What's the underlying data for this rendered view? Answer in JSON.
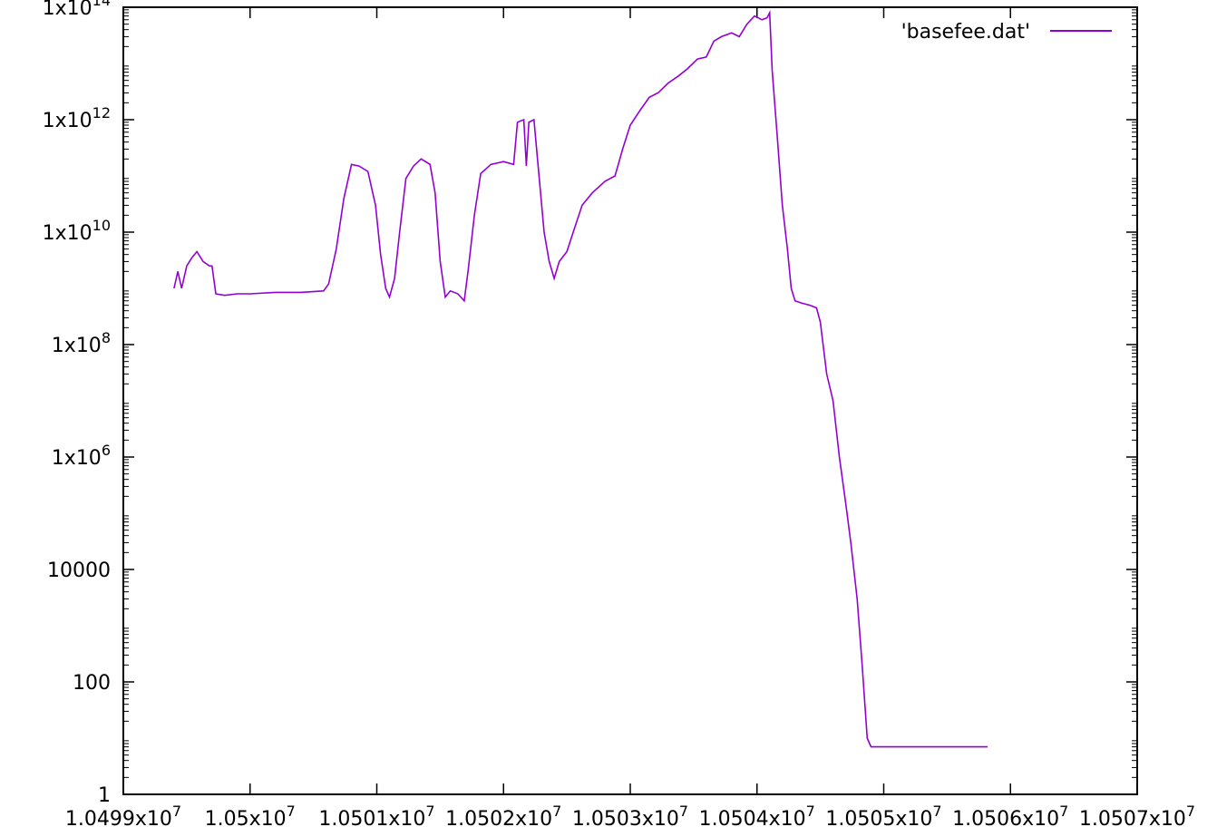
{
  "chart_data": {
    "type": "line",
    "title": "",
    "xlabel": "",
    "ylabel": "",
    "y_scale": "log",
    "xlim": [
      10499000,
      10507000
    ],
    "ylim": [
      1,
      100000000000000.0
    ],
    "grid": false,
    "legend_position": "top-right",
    "x_ticks": [
      {
        "value": 10499000,
        "label": "1.0499x10",
        "exp": "7"
      },
      {
        "value": 10500000,
        "label": "1.05x10",
        "exp": "7"
      },
      {
        "value": 10501000,
        "label": "1.0501x10",
        "exp": "7"
      },
      {
        "value": 10502000,
        "label": "1.0502x10",
        "exp": "7"
      },
      {
        "value": 10503000,
        "label": "1.0503x10",
        "exp": "7"
      },
      {
        "value": 10504000,
        "label": "1.0504x10",
        "exp": "7"
      },
      {
        "value": 10505000,
        "label": "1.0505x10",
        "exp": "7"
      },
      {
        "value": 10506000,
        "label": "1.0506x10",
        "exp": "7"
      },
      {
        "value": 10507000,
        "label": "1.0507x10",
        "exp": "7"
      }
    ],
    "y_ticks": [
      {
        "value": 1,
        "label": "1",
        "exp": ""
      },
      {
        "value": 100,
        "label": "100",
        "exp": ""
      },
      {
        "value": 10000,
        "label": "10000",
        "exp": ""
      },
      {
        "value": 1000000.0,
        "label": "1x10",
        "exp": "6"
      },
      {
        "value": 100000000.0,
        "label": "1x10",
        "exp": "8"
      },
      {
        "value": 10000000000.0,
        "label": "1x10",
        "exp": "10"
      },
      {
        "value": 1000000000000.0,
        "label": "1x10",
        "exp": "12"
      },
      {
        "value": 100000000000000.0,
        "label": "1x10",
        "exp": "14"
      }
    ],
    "series": [
      {
        "name": "'basefee.dat'",
        "color": "#9400d3",
        "points": [
          [
            10499400,
            1000000000.0
          ],
          [
            10499430,
            2000000000.0
          ],
          [
            10499460,
            1000000000.0
          ],
          [
            10499500,
            2500000000.0
          ],
          [
            10499540,
            3500000000.0
          ],
          [
            10499580,
            4500000000.0
          ],
          [
            10499630,
            3000000000.0
          ],
          [
            10499680,
            2500000000.0
          ],
          [
            10499700,
            2500000000.0
          ],
          [
            10499730,
            800000000.0
          ],
          [
            10499800,
            750000000.0
          ],
          [
            10499900,
            800000000.0
          ],
          [
            10500000,
            800000000.0
          ],
          [
            10500200,
            850000000.0
          ],
          [
            10500400,
            850000000.0
          ],
          [
            10500580,
            900000000.0
          ],
          [
            10500620,
            1200000000.0
          ],
          [
            10500680,
            5000000000.0
          ],
          [
            10500740,
            40000000000.0
          ],
          [
            10500800,
            160000000000.0
          ],
          [
            10500860,
            150000000000.0
          ],
          [
            10500930,
            120000000000.0
          ],
          [
            10500990,
            30000000000.0
          ],
          [
            10501030,
            4000000000.0
          ],
          [
            10501070,
            1000000000.0
          ],
          [
            10501100,
            700000000.0
          ],
          [
            10501140,
            1500000000.0
          ],
          [
            10501180,
            10000000000.0
          ],
          [
            10501230,
            90000000000.0
          ],
          [
            10501290,
            150000000000.0
          ],
          [
            10501350,
            200000000000.0
          ],
          [
            10501420,
            160000000000.0
          ],
          [
            10501460,
            50000000000.0
          ],
          [
            10501500,
            3000000000.0
          ],
          [
            10501540,
            700000000.0
          ],
          [
            10501580,
            900000000.0
          ],
          [
            10501640,
            800000000.0
          ],
          [
            10501690,
            600000000.0
          ],
          [
            10501720,
            2000000000.0
          ],
          [
            10501770,
            20000000000.0
          ],
          [
            10501820,
            110000000000.0
          ],
          [
            10501900,
            160000000000.0
          ],
          [
            10502000,
            180000000000.0
          ],
          [
            10502080,
            160000000000.0
          ],
          [
            10502110,
            900000000000.0
          ],
          [
            10502160,
            1000000000000.0
          ],
          [
            10502180,
            150000000000.0
          ],
          [
            10502200,
            900000000000.0
          ],
          [
            10502240,
            1000000000000.0
          ],
          [
            10502280,
            100000000000.0
          ],
          [
            10502320,
            10000000000.0
          ],
          [
            10502360,
            3000000000.0
          ],
          [
            10502400,
            1500000000.0
          ],
          [
            10502440,
            3000000000.0
          ],
          [
            10502500,
            4500000000.0
          ],
          [
            10502550,
            10000000000.0
          ],
          [
            10502620,
            30000000000.0
          ],
          [
            10502700,
            50000000000.0
          ],
          [
            10502800,
            80000000000.0
          ],
          [
            10502880,
            100000000000.0
          ],
          [
            10502940,
            300000000000.0
          ],
          [
            10503000,
            800000000000.0
          ],
          [
            10503080,
            1500000000000.0
          ],
          [
            10503150,
            2500000000000.0
          ],
          [
            10503220,
            3000000000000.0
          ],
          [
            10503300,
            4500000000000.0
          ],
          [
            10503380,
            6000000000000.0
          ],
          [
            10503450,
            8000000000000.0
          ],
          [
            10503530,
            12000000000000.0
          ],
          [
            10503600,
            13000000000000.0
          ],
          [
            10503660,
            25000000000000.0
          ],
          [
            10503720,
            30000000000000.0
          ],
          [
            10503800,
            35000000000000.0
          ],
          [
            10503860,
            30000000000000.0
          ],
          [
            10503920,
            50000000000000.0
          ],
          [
            10503980,
            70000000000000.0
          ],
          [
            10504040,
            60000000000000.0
          ],
          [
            10504080,
            65000000000000.0
          ],
          [
            10504100,
            80000000000000.0
          ],
          [
            10504120,
            7500000000000.0
          ],
          [
            10504160,
            500000000000.0
          ],
          [
            10504200,
            30000000000.0
          ],
          [
            10504240,
            5000000000.0
          ],
          [
            10504270,
            1000000000.0
          ],
          [
            10504300,
            600000000.0
          ],
          [
            10504350,
            550000000.0
          ],
          [
            10504420,
            500000000.0
          ],
          [
            10504470,
            450000000.0
          ],
          [
            10504500,
            250000000.0
          ],
          [
            10504550,
            30000000.0
          ],
          [
            10504600,
            10000000.0
          ],
          [
            10504650,
            1000000.0
          ],
          [
            10504700,
            150000.0
          ],
          [
            10504740,
            30000.0
          ],
          [
            10504790,
            3000.0
          ],
          [
            10504830,
            200
          ],
          [
            10504870,
            10
          ],
          [
            10504900,
            7
          ],
          [
            10505000,
            7
          ],
          [
            10505100,
            7
          ],
          [
            10505200,
            7
          ],
          [
            10505300,
            7
          ],
          [
            10505400,
            7
          ],
          [
            10505500,
            7
          ],
          [
            10505600,
            7
          ],
          [
            10505700,
            7
          ],
          [
            10505820,
            7
          ]
        ]
      }
    ]
  }
}
